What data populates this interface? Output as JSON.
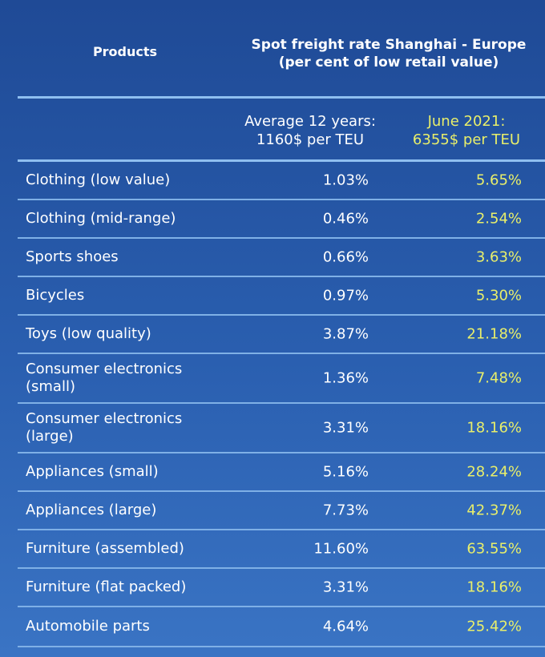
{
  "header": {
    "products": "Products",
    "spot_line1": "Spot freight rate Shanghai - Europe",
    "spot_line2": "(per cent of low retail value)",
    "avg_line1": "Average 12 years:",
    "avg_line2": "1160$ per TEU",
    "june_line1": "June 2021:",
    "june_line2": "6355$ per TEU"
  },
  "colors": {
    "background_top": "#1f4a96",
    "background_bottom": "#3a74c4",
    "june_text": "#e9ef6a",
    "separator": "#8fbff0"
  },
  "chart_data": {
    "type": "table",
    "title": "Spot freight rate Shanghai - Europe (per cent of low retail value)",
    "columns": [
      "Products",
      "Average 12 years: 1160$ per TEU",
      "June 2021: 6355$ per TEU"
    ],
    "rows": [
      {
        "product": "Clothing (low value)",
        "avg": "1.03%",
        "june": "5.65%"
      },
      {
        "product": "Clothing (mid-range)",
        "avg": "0.46%",
        "june": "2.54%"
      },
      {
        "product": "Sports shoes",
        "avg": "0.66%",
        "june": "3.63%"
      },
      {
        "product": "Bicycles",
        "avg": "0.97%",
        "june": "5.30%"
      },
      {
        "product": "Toys (low quality)",
        "avg": "3.87%",
        "june": "21.18%"
      },
      {
        "product": "Consumer electronics (small)",
        "avg": "1.36%",
        "june": "7.48%"
      },
      {
        "product": "Consumer electronics (large)",
        "avg": "3.31%",
        "june": "18.16%"
      },
      {
        "product": "Appliances (small)",
        "avg": "5.16%",
        "june": "28.24%"
      },
      {
        "product": "Appliances (large)",
        "avg": "7.73%",
        "june": "42.37%"
      },
      {
        "product": "Furniture (assembled)",
        "avg": "11.60%",
        "june": "63.55%"
      },
      {
        "product": "Furniture (flat packed)",
        "avg": "3.31%",
        "june": "18.16%"
      },
      {
        "product": "Automobile parts",
        "avg": "4.64%",
        "june": "25.42%"
      }
    ]
  }
}
